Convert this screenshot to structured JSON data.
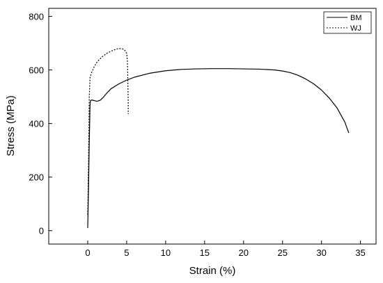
{
  "chart_data": {
    "type": "line",
    "xlabel": "Strain (%)",
    "ylabel": "Stress (MPa)",
    "xlim": [
      -5,
      37
    ],
    "ylim": [
      -50,
      830
    ],
    "x_ticks": [
      0,
      5,
      10,
      15,
      20,
      25,
      30,
      35
    ],
    "y_ticks": [
      0,
      200,
      400,
      600,
      800
    ],
    "x_tick_labels": [
      "0",
      "5",
      "10",
      "15",
      "20",
      "25",
      "30",
      "35"
    ],
    "y_tick_labels": [
      "0",
      "200",
      "400",
      "600",
      "800"
    ],
    "grid": false,
    "legend_position": "top-right",
    "series": [
      {
        "name": "BM",
        "style": "solid",
        "color": "#000000",
        "points": [
          [
            0.0,
            10
          ],
          [
            0.1,
            150
          ],
          [
            0.2,
            330
          ],
          [
            0.3,
            470
          ],
          [
            0.35,
            485
          ],
          [
            0.5,
            488
          ],
          [
            0.8,
            486
          ],
          [
            1.2,
            483
          ],
          [
            1.6,
            487
          ],
          [
            2.0,
            498
          ],
          [
            2.5,
            515
          ],
          [
            3.0,
            530
          ],
          [
            4.0,
            548
          ],
          [
            5.0,
            562
          ],
          [
            6.0,
            573
          ],
          [
            8.0,
            588
          ],
          [
            10.0,
            597
          ],
          [
            12.0,
            602
          ],
          [
            14.0,
            604
          ],
          [
            16.0,
            605
          ],
          [
            18.0,
            605
          ],
          [
            20.0,
            604
          ],
          [
            22.0,
            603
          ],
          [
            24.0,
            600
          ],
          [
            25.0,
            596
          ],
          [
            26.0,
            590
          ],
          [
            27.0,
            580
          ],
          [
            28.0,
            566
          ],
          [
            29.0,
            548
          ],
          [
            30.0,
            525
          ],
          [
            31.0,
            495
          ],
          [
            32.0,
            458
          ],
          [
            33.0,
            405
          ],
          [
            33.5,
            365
          ]
        ]
      },
      {
        "name": "WJ",
        "style": "dashed",
        "color": "#000000",
        "points": [
          [
            0.0,
            60
          ],
          [
            0.1,
            250
          ],
          [
            0.2,
            500
          ],
          [
            0.3,
            572
          ],
          [
            0.5,
            590
          ],
          [
            0.8,
            610
          ],
          [
            1.2,
            630
          ],
          [
            1.8,
            648
          ],
          [
            2.5,
            663
          ],
          [
            3.2,
            673
          ],
          [
            3.8,
            679
          ],
          [
            4.3,
            680
          ],
          [
            4.7,
            676
          ],
          [
            5.0,
            662
          ],
          [
            5.1,
            630
          ],
          [
            5.15,
            560
          ],
          [
            5.2,
            480
          ],
          [
            5.2,
            435
          ]
        ]
      }
    ]
  }
}
